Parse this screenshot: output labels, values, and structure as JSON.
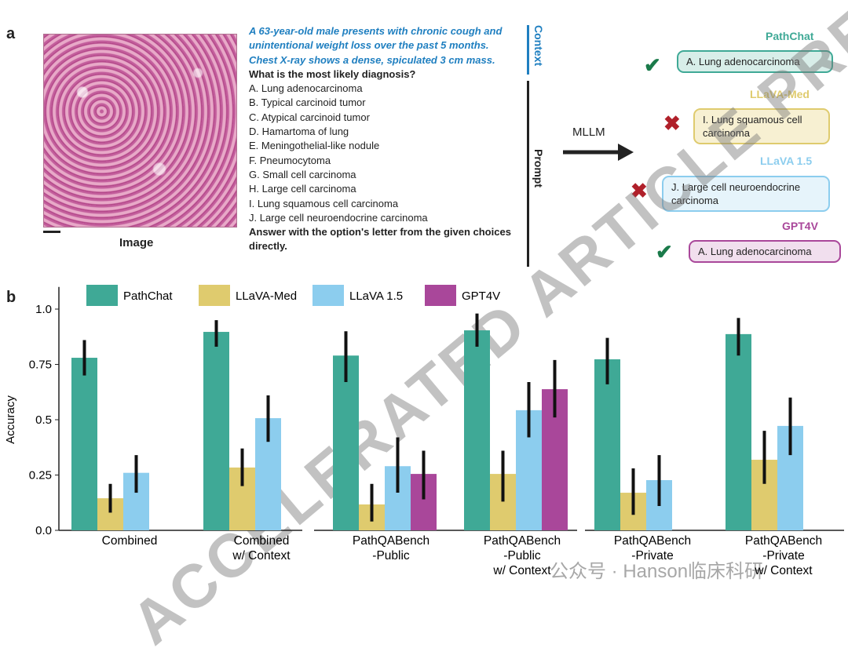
{
  "panel_a": {
    "letter": "a",
    "image_label": "Image",
    "context": "A 63-year-old male presents with chronic cough and unintentional weight loss over the past 5 months. Chest X-ray shows a dense, spiculated 3 cm mass.",
    "question": "What is the most likely diagnosis?",
    "options": [
      "A.  Lung adenocarcinoma",
      "B.  Typical carcinoid tumor",
      "C.  Atypical carcinoid tumor",
      "D.  Hamartoma of lung",
      "E.  Meningothelial-like nodule",
      "F.  Pneumocytoma",
      "G.  Small cell carcinoma",
      "H.  Large cell carcinoma",
      "I.   Lung squamous cell carcinoma",
      "J.  Large cell neuroendocrine carcinoma"
    ],
    "instruction": "Answer with the option's letter from the given choices directly.",
    "context_label": "Context",
    "prompt_label": "Prompt",
    "arrow_label": "MLLM",
    "responses": [
      {
        "model": "PathChat",
        "answer": "A. Lung adenocarcinoma",
        "correct": true,
        "color": "#3fa996",
        "fill": "#d8eee9"
      },
      {
        "model": "LLaVA-Med",
        "answer": "I. Lung squamous cell carcinoma",
        "correct": false,
        "color": "#dfcb6e",
        "fill": "#f7f0d2"
      },
      {
        "model": "LLaVA 1.5",
        "answer": "J. Large cell neuroendocrine carcinoma",
        "correct": false,
        "color": "#8ccdee",
        "fill": "#e6f4fb"
      },
      {
        "model": "GPT4V",
        "answer": "A. Lung adenocarcinoma",
        "correct": true,
        "color": "#a9479a",
        "fill": "#f1dfee"
      }
    ],
    "check_color": "#1a7a4a",
    "cross_color": "#b0202a"
  },
  "watermark": "ACCELERATED ARTICLE PREVIEW",
  "wechat_watermark": "公众号 · Hanson临床科研",
  "chart_data": {
    "type": "bar",
    "panel_letter": "b",
    "ylabel": "Accuracy",
    "ylim": [
      0,
      1.1
    ],
    "yticks": [
      "0.0",
      "0.25",
      "0.5",
      "0.75",
      "1.0"
    ],
    "ytick_values": [
      0,
      0.25,
      0.5,
      0.75,
      1.0
    ],
    "legend_placement": "top",
    "categories": [
      "Combined",
      "Combined\nw/ Context",
      "PathQABench\n-Public",
      "PathQABench\n-Public\nw/ Context",
      "PathQABench\n-Private",
      "PathQABench\n-Private\nw/ Context"
    ],
    "series": [
      {
        "name": "PathChat",
        "color": "#3fa996",
        "values": [
          0.78,
          0.897,
          0.79,
          0.904,
          0.773,
          0.887
        ],
        "ci": [
          [
            0.7,
            0.86
          ],
          [
            0.83,
            0.95
          ],
          [
            0.67,
            0.9
          ],
          [
            0.83,
            0.98
          ],
          [
            0.66,
            0.87
          ],
          [
            0.79,
            0.96
          ]
        ]
      },
      {
        "name": "LLaVA-Med",
        "color": "#dfcb6e",
        "values": [
          0.145,
          0.284,
          0.117,
          0.255,
          0.17,
          0.319
        ],
        "ci": [
          [
            0.08,
            0.21
          ],
          [
            0.2,
            0.37
          ],
          [
            0.04,
            0.21
          ],
          [
            0.13,
            0.36
          ],
          [
            0.07,
            0.28
          ],
          [
            0.21,
            0.45
          ]
        ]
      },
      {
        "name": "LLaVA 1.5",
        "color": "#8ccdee",
        "values": [
          0.26,
          0.507,
          0.29,
          0.543,
          0.227,
          0.472
        ],
        "ci": [
          [
            0.17,
            0.34
          ],
          [
            0.4,
            0.61
          ],
          [
            0.17,
            0.42
          ],
          [
            0.42,
            0.67
          ],
          [
            0.11,
            0.34
          ],
          [
            0.34,
            0.6
          ]
        ]
      },
      {
        "name": "GPT4V",
        "color": "#a9479a",
        "values": [
          null,
          null,
          0.255,
          0.638,
          null,
          null
        ],
        "ci": [
          null,
          null,
          [
            0.14,
            0.36
          ],
          [
            0.51,
            0.77
          ],
          null,
          null
        ]
      }
    ]
  }
}
